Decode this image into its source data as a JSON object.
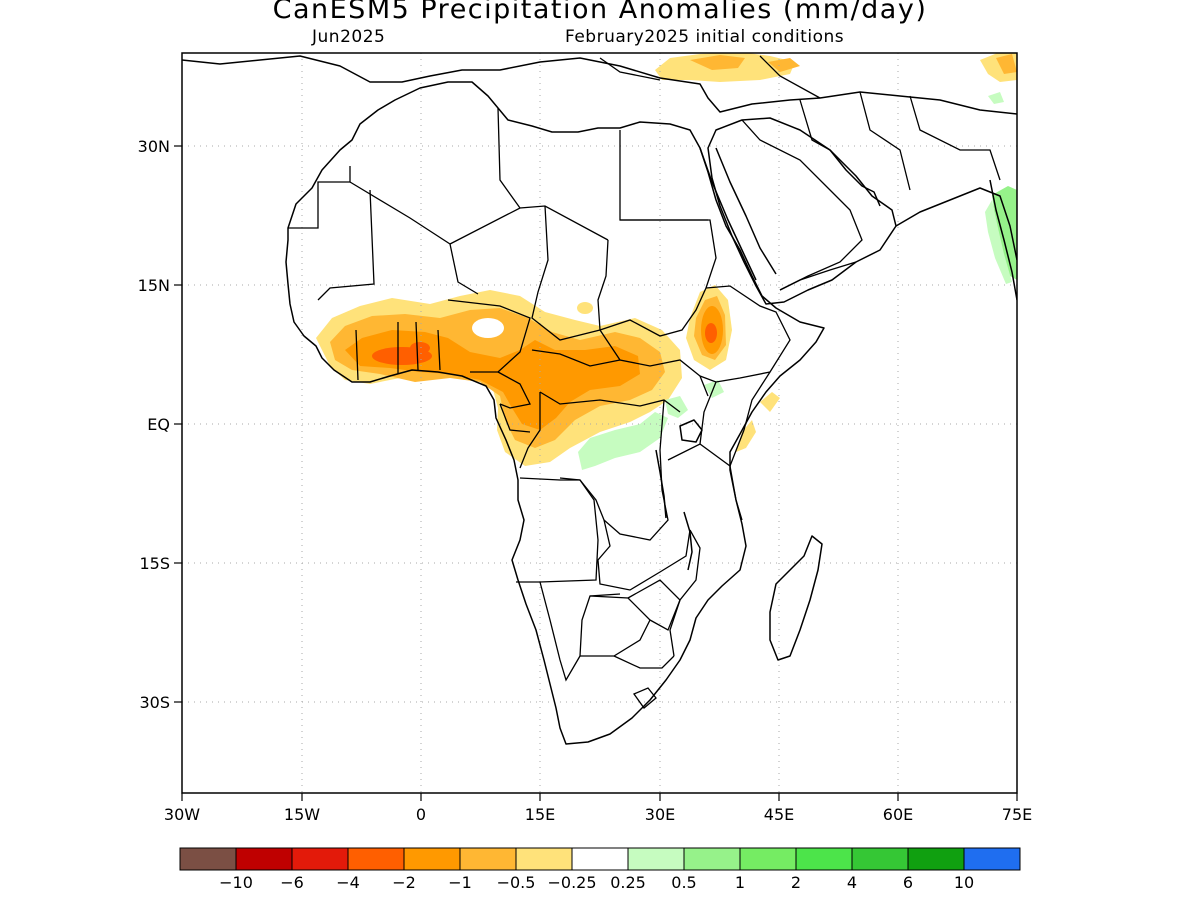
{
  "title": "CanESM5 Precipitation Anomalies (mm/day)",
  "subtitle_left": "Jun2025",
  "subtitle_right": "February2025 initial conditions",
  "map": {
    "lon_range": [
      -30,
      75
    ],
    "lat_range": [
      -46,
      47
    ],
    "gridlines": "dotted",
    "lon_ticks": [
      "30W",
      "15W",
      "0",
      "15E",
      "30E",
      "45E",
      "60E",
      "75E"
    ],
    "lat_ticks": [
      "30N",
      "15N",
      "EQ",
      "15S",
      "30S"
    ]
  },
  "colorbar": {
    "colors": [
      "#7b4f44",
      "#bf0000",
      "#e31a0a",
      "#ff5f00",
      "#ff9900",
      "#ffb733",
      "#ffe27a",
      "#ffffff",
      "#c6fcc0",
      "#96f28a",
      "#75ec63",
      "#4ce44a",
      "#35c735",
      "#10a010",
      "#1f6ef0"
    ],
    "labels": [
      "−10",
      "−6",
      "−4",
      "−2",
      "−1",
      "−0.5",
      "−0.25",
      "0.25",
      "0.5",
      "1",
      "2",
      "4",
      "6",
      "10"
    ]
  },
  "colors": {
    "border": "#000000",
    "grid": "#aaaaaa"
  }
}
